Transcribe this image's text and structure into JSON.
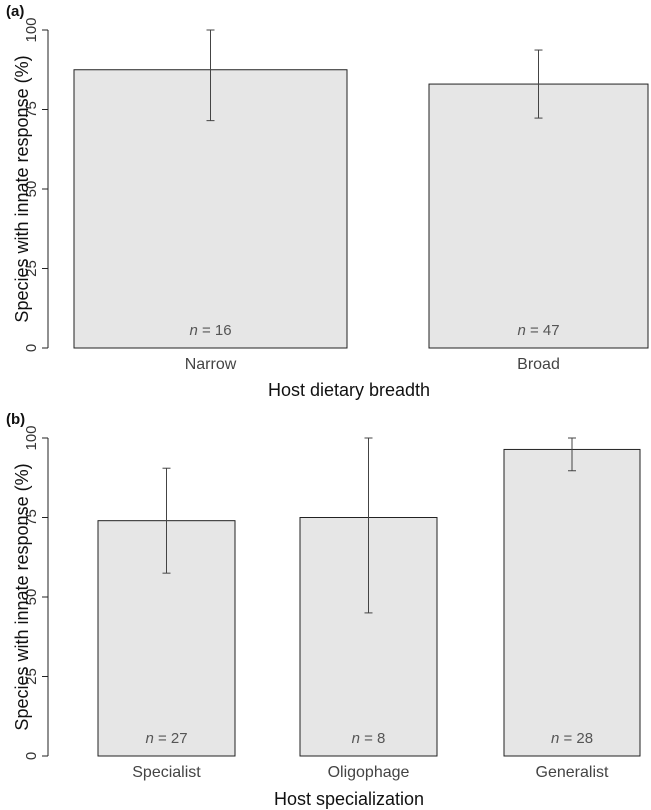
{
  "chart_data": [
    {
      "type": "bar",
      "panel_label": "(a)",
      "categories": [
        "Narrow",
        "Broad"
      ],
      "values": [
        87.5,
        83
      ],
      "error_low": [
        71.5,
        72.3
      ],
      "error_high": [
        100,
        93.7
      ],
      "n_prefix": "n",
      "n_values": [
        "= 16",
        "= 47"
      ],
      "xlabel": "Host dietary breadth",
      "ylabel": "Species with innate response (%)",
      "ylim": [
        0,
        100
      ],
      "yticks": [
        0,
        25,
        50,
        75,
        100
      ],
      "ytick_labels": [
        "0",
        "25",
        "50",
        "75",
        "100"
      ]
    },
    {
      "type": "bar",
      "panel_label": "(b)",
      "categories": [
        "Specialist",
        "Oligophage",
        "Generalist"
      ],
      "values": [
        74,
        75,
        96.4
      ],
      "error_low": [
        57.5,
        45,
        89.7
      ],
      "error_high": [
        90.5,
        100,
        100
      ],
      "n_prefix": "n",
      "n_values": [
        "= 27",
        "= 8",
        "= 28"
      ],
      "xlabel": "Host specialization",
      "ylabel": "Species with innate response (%)",
      "ylim": [
        0,
        100
      ],
      "yticks": [
        0,
        25,
        50,
        75,
        100
      ],
      "ytick_labels": [
        "0",
        "25",
        "50",
        "75",
        "100"
      ]
    }
  ]
}
